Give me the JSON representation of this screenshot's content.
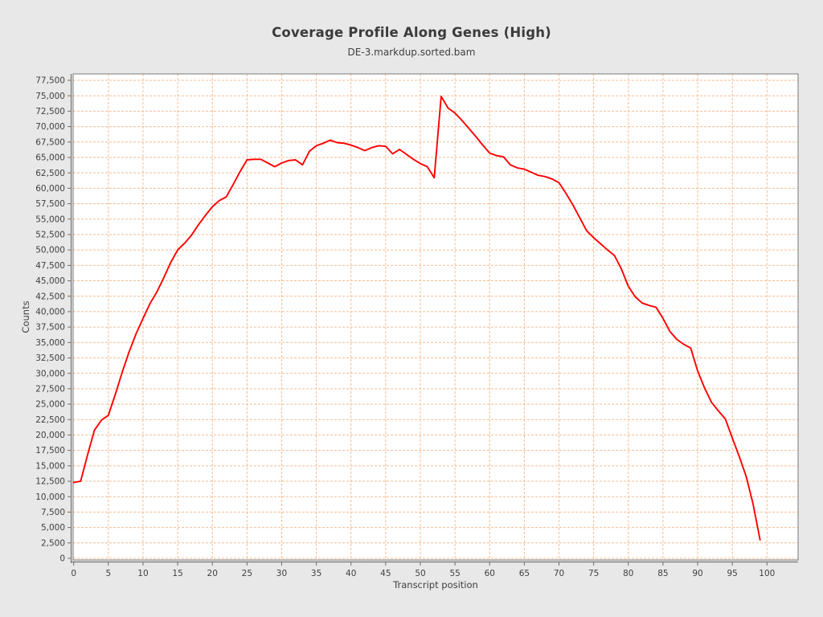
{
  "chart_data": {
    "type": "line",
    "title": "Coverage Profile Along Genes (High)",
    "subtitle": "DE-3.markdup.sorted.bam",
    "xlabel": "Transcript position",
    "ylabel": "Counts",
    "legend": "none",
    "grid": true,
    "line_color": "#fe0000",
    "grid_color": "#f4bd92",
    "plot_bg_color": "#ffffff",
    "outer_bg_color": "#e8e8e8",
    "xlim": [
      0,
      104.5
    ],
    "ylim": [
      0,
      78500
    ],
    "x_ticks": [
      0,
      5,
      10,
      15,
      20,
      25,
      30,
      35,
      40,
      45,
      50,
      55,
      60,
      65,
      70,
      75,
      80,
      85,
      90,
      95,
      100
    ],
    "y_ticks": [
      0,
      2500,
      5000,
      7500,
      10000,
      12500,
      15000,
      17500,
      20000,
      22500,
      25000,
      27500,
      30000,
      32500,
      35000,
      37500,
      40000,
      42500,
      45000,
      47500,
      50000,
      52500,
      55000,
      57500,
      60000,
      62500,
      65000,
      67500,
      70000,
      72500,
      75000,
      77500
    ],
    "x": [
      0,
      1,
      2,
      3,
      4,
      5,
      6,
      7,
      8,
      9,
      10,
      11,
      12,
      13,
      14,
      15,
      16,
      17,
      18,
      19,
      20,
      21,
      22,
      23,
      24,
      25,
      26,
      27,
      28,
      29,
      30,
      31,
      32,
      33,
      34,
      35,
      36,
      37,
      38,
      39,
      40,
      41,
      42,
      43,
      44,
      45,
      46,
      47,
      48,
      49,
      50,
      51,
      52,
      53,
      54,
      55,
      56,
      57,
      58,
      59,
      60,
      61,
      62,
      63,
      64,
      65,
      66,
      67,
      68,
      69,
      70,
      71,
      72,
      73,
      74,
      75,
      76,
      77,
      78,
      79,
      80,
      81,
      82,
      83,
      84,
      85,
      86,
      87,
      88,
      89,
      90,
      91,
      92,
      93,
      94,
      95,
      96,
      97,
      98,
      99
    ],
    "values": [
      12300,
      12500,
      16800,
      20800,
      22400,
      23200,
      26600,
      30200,
      33500,
      36400,
      38900,
      41300,
      43200,
      45500,
      48000,
      50000,
      51100,
      52400,
      54100,
      55600,
      57000,
      58000,
      58600,
      60600,
      62700,
      64600,
      64700,
      64700,
      64100,
      63500,
      64100,
      64500,
      64600,
      63800,
      66000,
      66900,
      67300,
      67800,
      67400,
      67300,
      67000,
      66600,
      66100,
      66600,
      66900,
      66800,
      65600,
      66300,
      65500,
      64700,
      64000,
      63500,
      61700,
      74900,
      73000,
      72200,
      71000,
      69700,
      68400,
      67000,
      65700,
      65300,
      65100,
      63800,
      63300,
      63100,
      62600,
      62100,
      61900,
      61500,
      60900,
      59200,
      57300,
      55200,
      53100,
      52000,
      51000,
      50000,
      49100,
      46900,
      44100,
      42400,
      41400,
      41000,
      40700,
      38900,
      36800,
      35500,
      34700,
      34100,
      30400,
      27600,
      25300,
      23900,
      22600,
      19500,
      16500,
      13300,
      8800,
      3000
    ]
  }
}
